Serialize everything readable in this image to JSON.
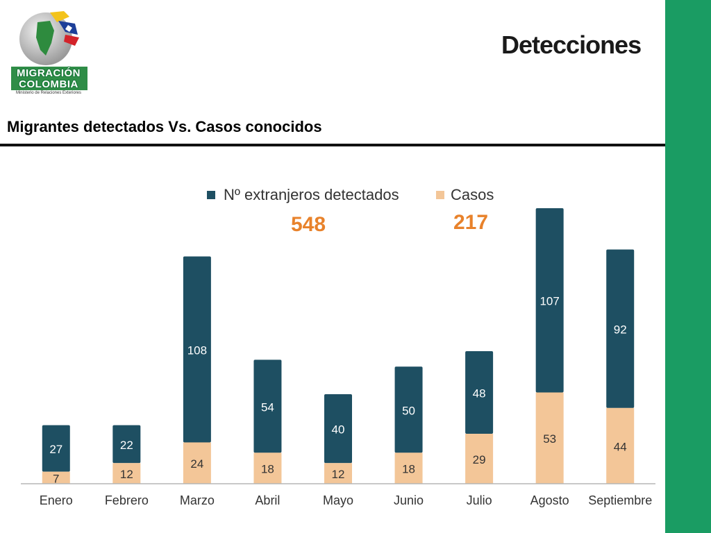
{
  "header": {
    "title": "Detecciones",
    "logo_line1": "MIGRACIÓN",
    "logo_line2": "COLOMBIA",
    "logo_subline": "Ministerio de Relaciones Exteriores"
  },
  "section_title": "Migrantes detectados Vs. Casos conocidos",
  "colors": {
    "detectados": "#1e4f62",
    "casos": "#f3c698",
    "accent_orange": "#e8822b",
    "green_band": "#1a9c63"
  },
  "chart_data": {
    "type": "bar",
    "stacked": true,
    "categories": [
      "Enero",
      "Febrero",
      "Marzo",
      "Abril",
      "Mayo",
      "Junio",
      "Julio",
      "Agosto",
      "Septiembre"
    ],
    "series": [
      {
        "name": "Casos",
        "values": [
          7,
          12,
          24,
          18,
          12,
          18,
          29,
          53,
          44
        ]
      },
      {
        "name": "Nº extranjeros detectados",
        "values": [
          27,
          22,
          108,
          54,
          40,
          50,
          48,
          107,
          92
        ]
      }
    ],
    "totals": {
      "detectados": "548",
      "casos": "217"
    },
    "ylim": [
      0,
      160
    ],
    "grid": false,
    "legend_position": "top"
  }
}
